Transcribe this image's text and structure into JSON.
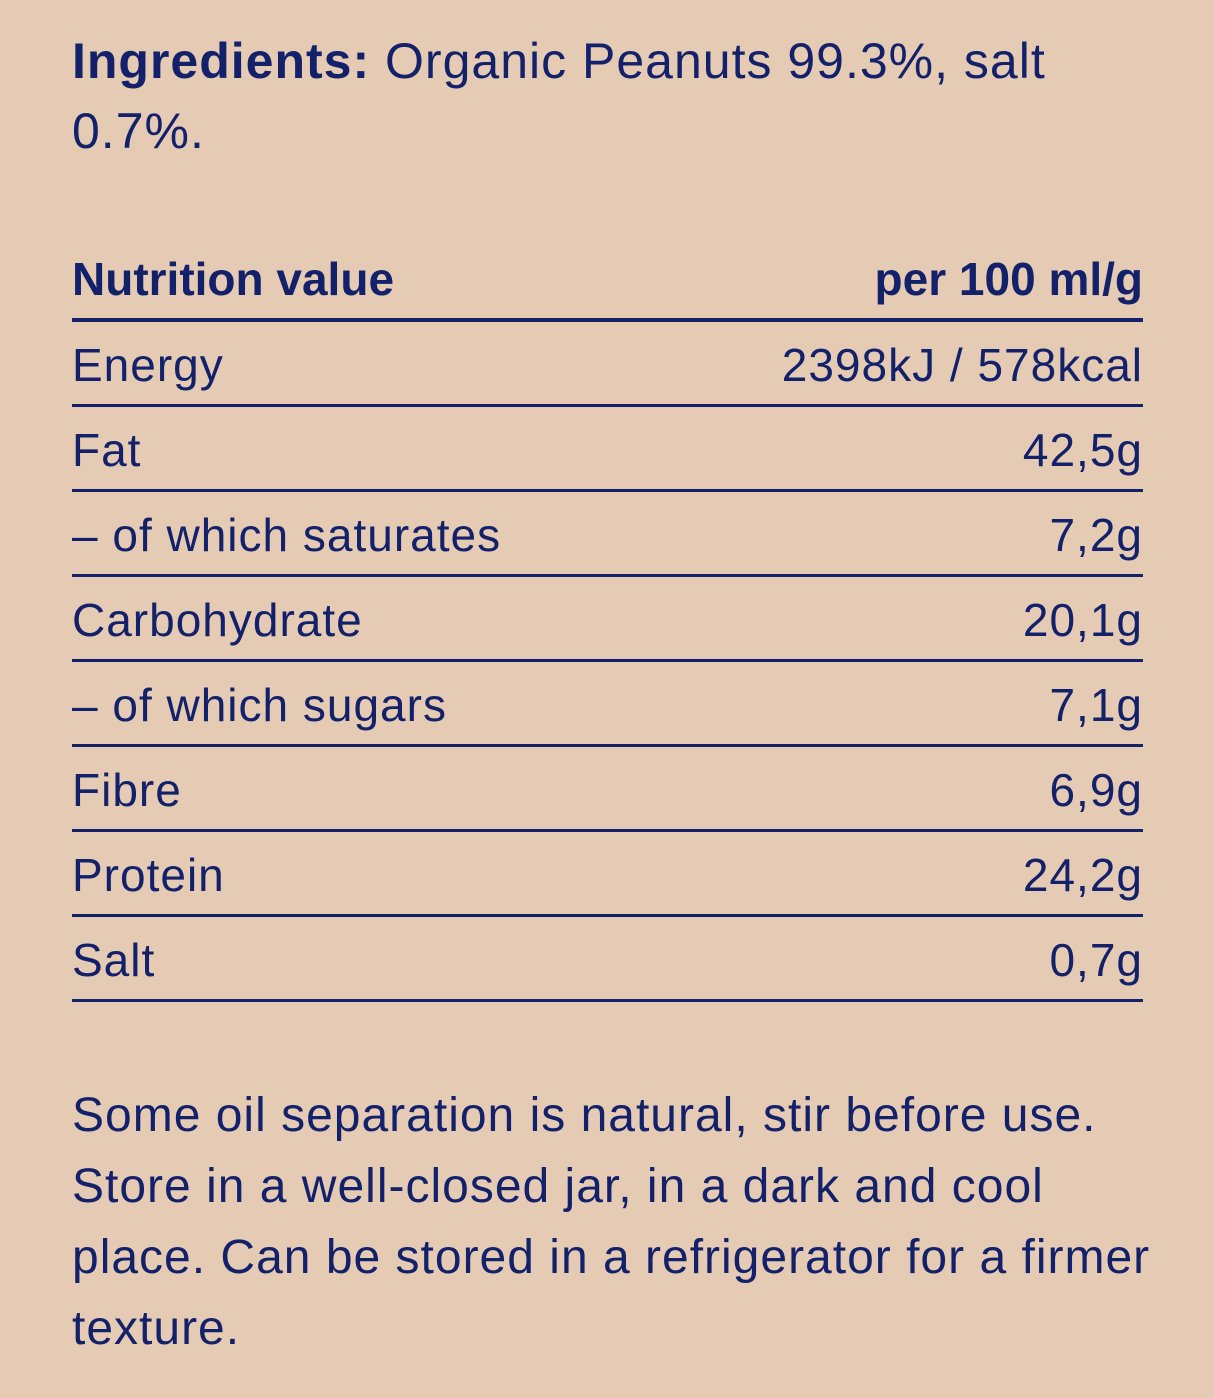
{
  "ingredients": {
    "label": "Ingredients:",
    "text": " Organic Peanuts 99.3%, salt 0.7%."
  },
  "nutrition": {
    "header": {
      "label": "Nutrition value",
      "unit": "per 100 ml/g"
    },
    "rows": [
      {
        "name": "Energy",
        "value": "2398kJ / 578kcal"
      },
      {
        "name": "Fat",
        "value": "42,5g"
      },
      {
        "name": "– of which saturates",
        "value": "7,2g"
      },
      {
        "name": "Carbohydrate",
        "value": "20,1g"
      },
      {
        "name": "– of which sugars",
        "value": "7,1g"
      },
      {
        "name": "Fibre",
        "value": "6,9g"
      },
      {
        "name": "Protein",
        "value": "24,2g"
      },
      {
        "name": "Salt",
        "value": "0,7g"
      }
    ]
  },
  "note": "Some oil separation is natural, stir before use. Store in a well-closed jar, in a dark and cool place. Can be stored in a refrigerator for a firmer texture.",
  "colors": {
    "background": "#e5cbb4",
    "text": "#13216b"
  }
}
